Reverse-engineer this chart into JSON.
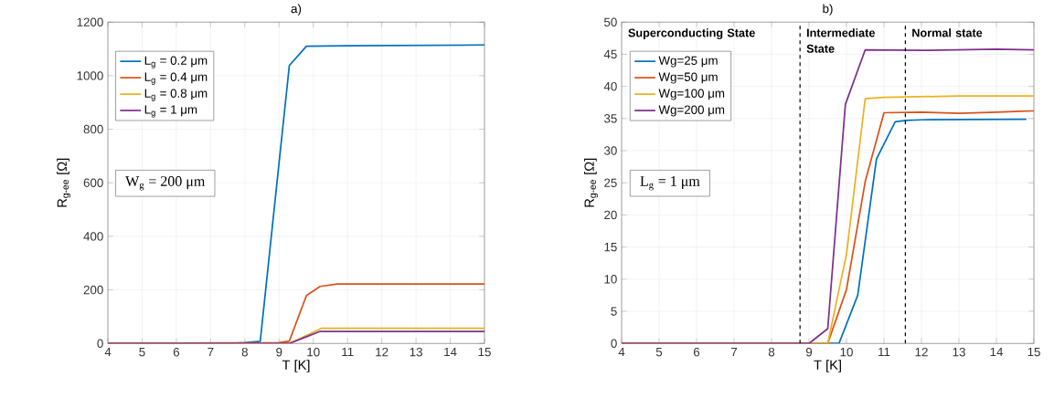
{
  "chart_data": [
    {
      "type": "line",
      "title": "a)",
      "xlabel": "T [K]",
      "ylabel": "R$_{g-ee}$ [Ω]",
      "xlim": [
        4,
        15
      ],
      "ylim": [
        0,
        1200
      ],
      "xticks": [
        4,
        5,
        6,
        7,
        8,
        9,
        10,
        11,
        12,
        13,
        14,
        15
      ],
      "yticks": [
        0,
        200,
        400,
        600,
        800,
        1000,
        1200
      ],
      "grid": true,
      "legend": "top left",
      "line_style": "solid",
      "annotations": [
        "W$_{g}$ = 200 μm"
      ],
      "series": [
        {
          "name": "L$_{g}$ = 0.2 μm",
          "color": "#0072bd",
          "x": [
            4,
            7.5,
            8,
            8.45,
            9.3,
            9.8,
            11,
            15
          ],
          "values": [
            0,
            0,
            3,
            8,
            1038,
            1110,
            1112,
            1115
          ]
        },
        {
          "name": "L$_{g}$ = 0.4 μm",
          "color": "#d95319",
          "x": [
            4,
            9,
            9.3,
            9.8,
            10.2,
            10.7,
            15
          ],
          "values": [
            0,
            3,
            9,
            179,
            213,
            222,
            222
          ]
        },
        {
          "name": "L$_{g}$ = 0.8 μm",
          "color": "#edb120",
          "x": [
            4,
            9.3,
            10.25,
            15
          ],
          "values": [
            0,
            0,
            57,
            57
          ]
        },
        {
          "name": "L$_{g}$ = 1 μm",
          "color": "#7e2f8e",
          "x": [
            4,
            9.3,
            9.8,
            10.2,
            15
          ],
          "values": [
            0,
            0,
            25,
            45,
            45
          ]
        }
      ]
    },
    {
      "type": "line",
      "title": "b)",
      "xlabel": "T [K]",
      "ylabel": "R$_{g-ee}$ [Ω]",
      "xlim": [
        4,
        15
      ],
      "ylim": [
        0,
        50
      ],
      "xticks": [
        4,
        5,
        6,
        7,
        8,
        9,
        10,
        11,
        12,
        13,
        14,
        15
      ],
      "yticks": [
        0,
        5,
        10,
        15,
        20,
        25,
        30,
        35,
        40,
        45,
        50
      ],
      "grid": true,
      "legend": "top left",
      "line_style": "solid",
      "annotations": [
        "L$_{g}$ = 1 μm",
        "Superconducting State",
        "Intermediate State",
        "Normal state"
      ],
      "ref_lines": [
        {
          "axis": "x",
          "value": 8.76,
          "color": "#000000",
          "line_style": "dashed"
        },
        {
          "axis": "x",
          "value": 11.57,
          "color": "#000000",
          "line_style": "dashed"
        }
      ],
      "series": [
        {
          "name": "Wg=25 μm",
          "color": "#0072bd",
          "x": [
            4,
            9.8,
            10.3,
            10.8,
            11.3,
            11.6,
            12,
            14.8
          ],
          "values": [
            0,
            0,
            7.5,
            28.7,
            34.5,
            34.7,
            34.8,
            34.9
          ]
        },
        {
          "name": "Wg=50 μm",
          "color": "#d95319",
          "x": [
            4,
            9.5,
            10,
            10.5,
            11,
            12,
            13,
            14,
            15
          ],
          "values": [
            0,
            0,
            8.4,
            25.2,
            35.9,
            36,
            35.8,
            36,
            36.2
          ]
        },
        {
          "name": "Wg=100 μm",
          "color": "#edb120",
          "x": [
            4,
            9.5,
            10,
            10.5,
            11,
            13,
            15
          ],
          "values": [
            0,
            0,
            13.9,
            38.1,
            38.3,
            38.5,
            38.5
          ]
        },
        {
          "name": "Wg=200 μm",
          "color": "#7e2f8e",
          "x": [
            4,
            9,
            9.5,
            9.97,
            10.5,
            12,
            14,
            15
          ],
          "values": [
            0,
            0,
            2.3,
            37.2,
            45.7,
            45.6,
            45.8,
            45.7
          ]
        }
      ]
    }
  ]
}
